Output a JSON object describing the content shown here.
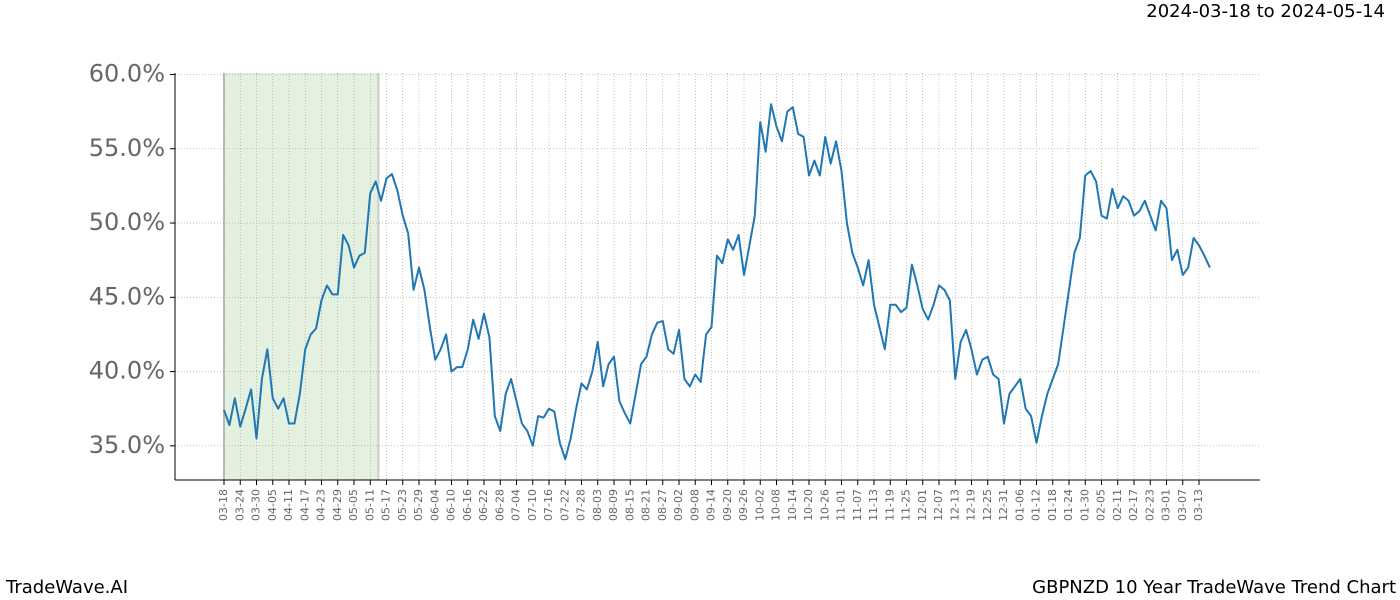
{
  "chart_data": {
    "type": "line",
    "range_label": "2024-03-18 to 2024-05-14",
    "brand": "TradeWave.AI",
    "title": "GBPNZD 10 Year TradeWave Trend Chart",
    "categories": [
      "03-18",
      null,
      null,
      "03-24",
      null,
      null,
      "03-30",
      null,
      null,
      "04-05",
      null,
      null,
      "04-11",
      null,
      null,
      "04-17",
      null,
      null,
      "04-23",
      null,
      null,
      "04-29",
      null,
      null,
      "05-05",
      null,
      null,
      "05-11",
      null,
      null,
      "05-17",
      null,
      null,
      "05-23",
      null,
      null,
      "05-29",
      null,
      null,
      "06-04",
      null,
      null,
      "06-10",
      null,
      null,
      "06-16",
      null,
      null,
      "06-22",
      null,
      null,
      "06-28",
      null,
      null,
      "07-04",
      null,
      null,
      "07-10",
      null,
      null,
      "07-16",
      null,
      null,
      "07-22",
      null,
      null,
      "07-28",
      null,
      null,
      "08-03",
      null,
      null,
      "08-09",
      null,
      null,
      "08-15",
      null,
      null,
      "08-21",
      null,
      null,
      "08-27",
      null,
      null,
      "09-02",
      null,
      null,
      "09-08",
      null,
      null,
      "09-14",
      null,
      null,
      "09-20",
      null,
      null,
      "09-26",
      null,
      null,
      "10-02",
      null,
      null,
      "10-08",
      null,
      null,
      "10-14",
      null,
      null,
      "10-20",
      null,
      null,
      "10-26",
      null,
      null,
      "11-01",
      null,
      null,
      "11-07",
      null,
      null,
      "11-13",
      null,
      null,
      "11-19",
      null,
      null,
      "11-25",
      null,
      null,
      "12-01",
      null,
      null,
      "12-07",
      null,
      null,
      "12-13",
      null,
      null,
      "12-19",
      null,
      null,
      "12-25",
      null,
      null,
      "12-31",
      null,
      null,
      "01-06",
      null,
      null,
      "01-12",
      null,
      null,
      "01-18",
      null,
      null,
      "01-24",
      null,
      null,
      "01-30",
      null,
      null,
      "02-05",
      null,
      null,
      "02-11",
      null,
      null,
      "02-17",
      null,
      null,
      "02-23",
      null,
      null,
      "03-01",
      null,
      null,
      "03-07",
      null,
      null,
      "03-13",
      null,
      null
    ],
    "series": [
      {
        "name": "GBPNZD",
        "color": "#1f77b4",
        "values": [
          37.4,
          36.4,
          38.2,
          36.3,
          37.5,
          38.8,
          35.5,
          39.5,
          41.5,
          38.2,
          37.5,
          38.2,
          36.5,
          36.5,
          38.5,
          41.5,
          42.5,
          42.9,
          44.8,
          45.8,
          45.2,
          45.2,
          49.2,
          48.5,
          47.0,
          47.8,
          48.0,
          52.0,
          52.8,
          51.5,
          53.0,
          53.3,
          52.2,
          50.5,
          49.3,
          45.5,
          47.0,
          45.5,
          43.0,
          40.8,
          41.5,
          42.5,
          40.0,
          40.3,
          40.3,
          41.5,
          43.5,
          42.2,
          43.9,
          42.3,
          37.0,
          36.0,
          38.5,
          39.5,
          38.0,
          36.5,
          36.0,
          35.0,
          37.0,
          36.9,
          37.5,
          37.3,
          35.2,
          34.1,
          35.5,
          37.5,
          39.2,
          38.8,
          40.0,
          42.0,
          39.0,
          40.5,
          41.0,
          38.0,
          37.2,
          36.5,
          38.5,
          40.5,
          41.0,
          42.5,
          43.3,
          43.4,
          41.5,
          41.2,
          42.8,
          39.5,
          39.0,
          39.8,
          39.3,
          42.5,
          43.0,
          47.8,
          47.3,
          48.9,
          48.2,
          49.2,
          46.5,
          48.5,
          50.5,
          56.8,
          54.8,
          58.0,
          56.5,
          55.5,
          57.5,
          57.8,
          56.0,
          55.8,
          53.2,
          54.2,
          53.2,
          55.8,
          54.0,
          55.5,
          53.5,
          50.0,
          48.0,
          47.0,
          45.8,
          47.5,
          44.5,
          43.0,
          41.5,
          44.5,
          44.5,
          44.0,
          44.3,
          47.2,
          45.8,
          44.2,
          43.5,
          44.5,
          45.8,
          45.5,
          44.8,
          39.5,
          42.0,
          42.8,
          41.5,
          39.8,
          40.8,
          41.0,
          39.8,
          39.5,
          36.5,
          38.5,
          39.0,
          39.5,
          37.5,
          37.0,
          35.2,
          37.0,
          38.5,
          39.5,
          40.5,
          43.0,
          45.5,
          48.0,
          49.0,
          53.2,
          53.5,
          52.8,
          50.5,
          50.3,
          52.3,
          51.0,
          51.8,
          51.5,
          50.5,
          50.8,
          51.5,
          50.5,
          49.5,
          51.5,
          51.0,
          47.5,
          48.2,
          46.5,
          47.0,
          49.0,
          48.5,
          47.8,
          47.0
        ]
      }
    ],
    "shaded_range": [
      0,
      28.5
    ],
    "shade_color": "#d9ead3",
    "ylim": [
      32.7,
      60.1
    ],
    "yticks": [
      {
        "value": 35,
        "label": "35.0%"
      },
      {
        "value": 40,
        "label": "40.0%"
      },
      {
        "value": 45,
        "label": "45.0%"
      },
      {
        "value": 50,
        "label": "50.0%"
      },
      {
        "value": 55,
        "label": "55.0%"
      },
      {
        "value": 60,
        "label": "60.0%"
      }
    ],
    "grid": true
  }
}
